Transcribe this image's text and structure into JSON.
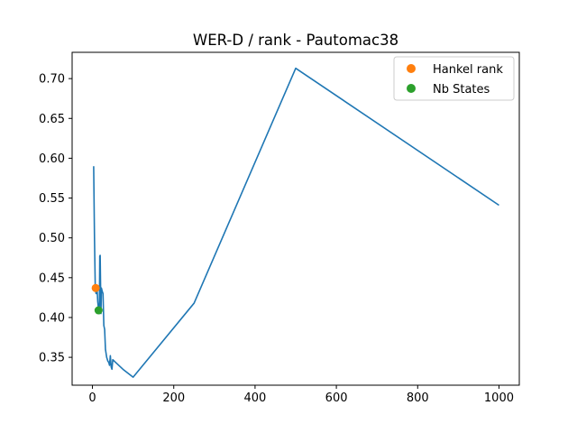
{
  "chart_data": {
    "type": "line",
    "title": "WER-D / rank - Pautomac38",
    "xlabel": "",
    "ylabel": "",
    "xlim": [
      -50,
      1050
    ],
    "ylim": [
      0.315,
      0.733
    ],
    "xticks": [
      0,
      200,
      400,
      600,
      800,
      1000
    ],
    "yticks": [
      0.35,
      0.4,
      0.45,
      0.5,
      0.55,
      0.6,
      0.65,
      0.7
    ],
    "ytick_labels": [
      "0.35",
      "0.40",
      "0.45",
      "0.50",
      "0.55",
      "0.60",
      "0.65",
      "0.70"
    ],
    "grid": false,
    "legend_position": "top-right",
    "series": [
      {
        "color": "#1f77b4",
        "kind": "line",
        "points": [
          [
            3,
            0.59
          ],
          [
            5,
            0.5
          ],
          [
            7,
            0.435
          ],
          [
            9,
            0.43
          ],
          [
            11,
            0.44
          ],
          [
            13,
            0.42
          ],
          [
            15,
            0.41
          ],
          [
            17,
            0.405
          ],
          [
            18,
            0.477
          ],
          [
            19,
            0.478
          ],
          [
            20,
            0.44
          ],
          [
            21,
            0.405
          ],
          [
            22,
            0.437
          ],
          [
            24,
            0.433
          ],
          [
            26,
            0.43
          ],
          [
            28,
            0.39
          ],
          [
            30,
            0.385
          ],
          [
            32,
            0.36
          ],
          [
            35,
            0.35
          ],
          [
            38,
            0.345
          ],
          [
            40,
            0.344
          ],
          [
            42,
            0.34
          ],
          [
            44,
            0.352
          ],
          [
            46,
            0.338
          ],
          [
            48,
            0.335
          ],
          [
            50,
            0.347
          ],
          [
            75,
            0.335
          ],
          [
            100,
            0.325
          ],
          [
            250,
            0.418
          ],
          [
            500,
            0.713
          ],
          [
            1000,
            0.541
          ]
        ]
      },
      {
        "name": "Hankel rank",
        "color": "#ff7f0e",
        "kind": "marker",
        "points": [
          [
            8,
            0.437
          ]
        ]
      },
      {
        "name": "Nb States",
        "color": "#2ca02c",
        "kind": "marker",
        "points": [
          [
            15,
            0.409
          ]
        ]
      }
    ]
  }
}
